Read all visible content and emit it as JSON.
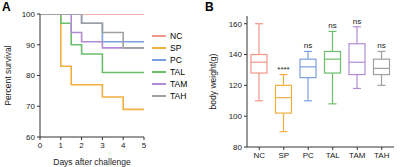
{
  "chart_data": [
    {
      "type": "line",
      "title": "A",
      "x_label": "Days after challenge",
      "y_label": "Percent survival",
      "x": [
        0,
        1,
        1.5,
        2,
        3,
        4,
        5
      ],
      "xlim": [
        0,
        5
      ],
      "xticks": [
        0,
        1,
        2,
        3,
        4,
        5
      ],
      "ylim": [
        60,
        100
      ],
      "yticks": [
        60,
        70,
        80,
        90,
        100
      ],
      "line_style": "step",
      "legend": "right",
      "series": [
        {
          "name": "NC",
          "color": "#f2968a",
          "values": [
            100,
            100,
            100,
            100,
            100,
            100,
            100
          ]
        },
        {
          "name": "SP",
          "color": "#f0b040",
          "values": [
            100,
            83,
            77,
            77,
            73,
            69,
            69
          ]
        },
        {
          "name": "PC",
          "color": "#7b9fe0",
          "values": [
            100,
            100,
            100,
            97,
            91,
            91,
            91
          ]
        },
        {
          "name": "TAL",
          "color": "#6bbf6b",
          "values": [
            100,
            97,
            90,
            87,
            81,
            81,
            81
          ]
        },
        {
          "name": "TAM",
          "color": "#b28bd6",
          "values": [
            100,
            100,
            94,
            91,
            89,
            89,
            89
          ]
        },
        {
          "name": "TAH",
          "color": "#a0a0a0",
          "values": [
            100,
            100,
            100,
            97,
            94,
            89,
            89
          ]
        }
      ]
    },
    {
      "type": "box",
      "title": "B",
      "y_label": "body weight(g)",
      "categories": [
        "NC",
        "SP",
        "PC",
        "TAL",
        "TAM",
        "TAH"
      ],
      "colors": [
        "#f2968a",
        "#f0b040",
        "#7b9fe0",
        "#6bbf6b",
        "#b28bd6",
        "#a0a0a0"
      ],
      "min": [
        110,
        90,
        110,
        108,
        118,
        120
      ],
      "q1": [
        128,
        102,
        125,
        128,
        127,
        127
      ],
      "median": [
        135,
        112,
        132,
        137,
        135,
        131
      ],
      "q3": [
        140,
        120,
        137,
        142,
        147,
        137
      ],
      "max": [
        160,
        127,
        142,
        155,
        158,
        142
      ],
      "ylim": [
        80,
        165
      ],
      "yticks": [
        80,
        100,
        120,
        140,
        160
      ],
      "annotations": [
        {
          "category": "SP",
          "text": "****"
        },
        {
          "category": "PC",
          "text": "ns"
        },
        {
          "category": "TAL",
          "text": "ns"
        },
        {
          "category": "TAM",
          "text": "ns"
        },
        {
          "category": "TAH",
          "text": "ns"
        }
      ]
    }
  ]
}
